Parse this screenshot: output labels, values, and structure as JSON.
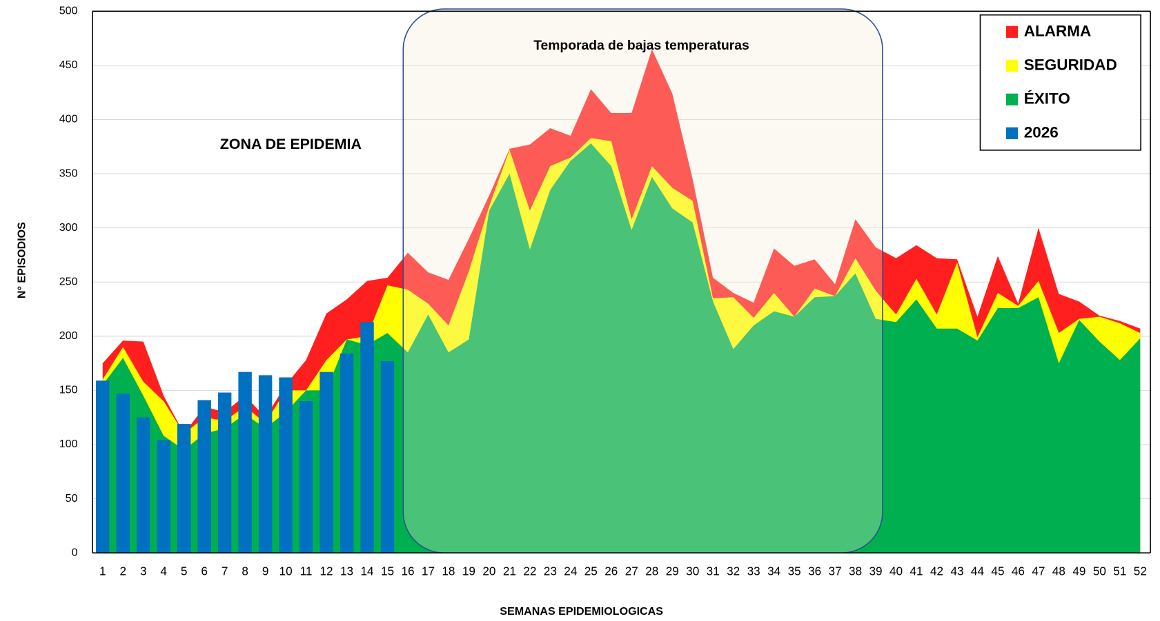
{
  "chart_data": {
    "type": "area",
    "annotations": [
      "ZONA DE EPIDEMIA",
      "Temporada de bajas temperaturas"
    ],
    "xlabel": "SEMANAS  EPIDEMIOLOGICAS",
    "ylabel": "N° EPISODIOS",
    "categories": [
      "1",
      "2",
      "3",
      "4",
      "5",
      "6",
      "7",
      "8",
      "9",
      "10",
      "11",
      "12",
      "13",
      "14",
      "15",
      "16",
      "17",
      "18",
      "19",
      "20",
      "21",
      "22",
      "23",
      "24",
      "25",
      "26",
      "27",
      "28",
      "29",
      "30",
      "31",
      "32",
      "33",
      "34",
      "35",
      "36",
      "37",
      "38",
      "39",
      "40",
      "41",
      "42",
      "43",
      "44",
      "45",
      "46",
      "47",
      "48",
      "49",
      "50",
      "51",
      "52"
    ],
    "series": [
      {
        "name": "ALARMA",
        "color": "#ff1f1f",
        "values": [
          175,
          196,
          195,
          145,
          110,
          135,
          130,
          145,
          125,
          155,
          178,
          221,
          234,
          251,
          254,
          277,
          259,
          252,
          290,
          330,
          373,
          377,
          392,
          385,
          428,
          406,
          406,
          465,
          424,
          345,
          254,
          240,
          231,
          281,
          265,
          271,
          248,
          308,
          282,
          272,
          284,
          272,
          271,
          218,
          274,
          230,
          300,
          239,
          232,
          219,
          214,
          207
        ]
      },
      {
        "name": "SEGURIDAD",
        "color": "#ffff00",
        "values": [
          160,
          190,
          158,
          140,
          110,
          125,
          122,
          135,
          120,
          150,
          150,
          178,
          197,
          200,
          247,
          243,
          230,
          210,
          260,
          320,
          372,
          316,
          357,
          365,
          383,
          380,
          308,
          357,
          337,
          325,
          235,
          236,
          217,
          240,
          218,
          244,
          237,
          272,
          242,
          220,
          253,
          220,
          268,
          199,
          240,
          228,
          251,
          203,
          216,
          218,
          212,
          203
        ]
      },
      {
        "name": "ÉXITO",
        "color": "#00b050",
        "values": [
          155,
          180,
          145,
          108,
          95,
          110,
          115,
          128,
          115,
          130,
          150,
          150,
          197,
          192,
          203,
          185,
          220,
          185,
          197,
          316,
          350,
          280,
          335,
          362,
          378,
          357,
          298,
          347,
          318,
          305,
          232,
          188,
          210,
          223,
          218,
          236,
          237,
          258,
          216,
          213,
          234,
          207,
          207,
          196,
          226,
          226,
          236,
          175,
          215,
          195,
          178,
          198
        ]
      },
      {
        "name": "2026",
        "color": "#0070c0",
        "type": "bar",
        "values": [
          159,
          147,
          125,
          104,
          119,
          141,
          148,
          167,
          164,
          162,
          140,
          167,
          184,
          213,
          177,
          null,
          null,
          null,
          null,
          null,
          null,
          null,
          null,
          null,
          null,
          null,
          null,
          null,
          null,
          null,
          null,
          null,
          null,
          null,
          null,
          null,
          null,
          null,
          null,
          null,
          null,
          null,
          null,
          null,
          null,
          null,
          null,
          null,
          null,
          null,
          null,
          null
        ]
      }
    ],
    "ylim": [
      0,
      500
    ],
    "yticks": [
      0,
      50,
      100,
      150,
      200,
      250,
      300,
      350,
      400,
      450,
      500
    ],
    "grid": true,
    "legend": "top-right"
  }
}
